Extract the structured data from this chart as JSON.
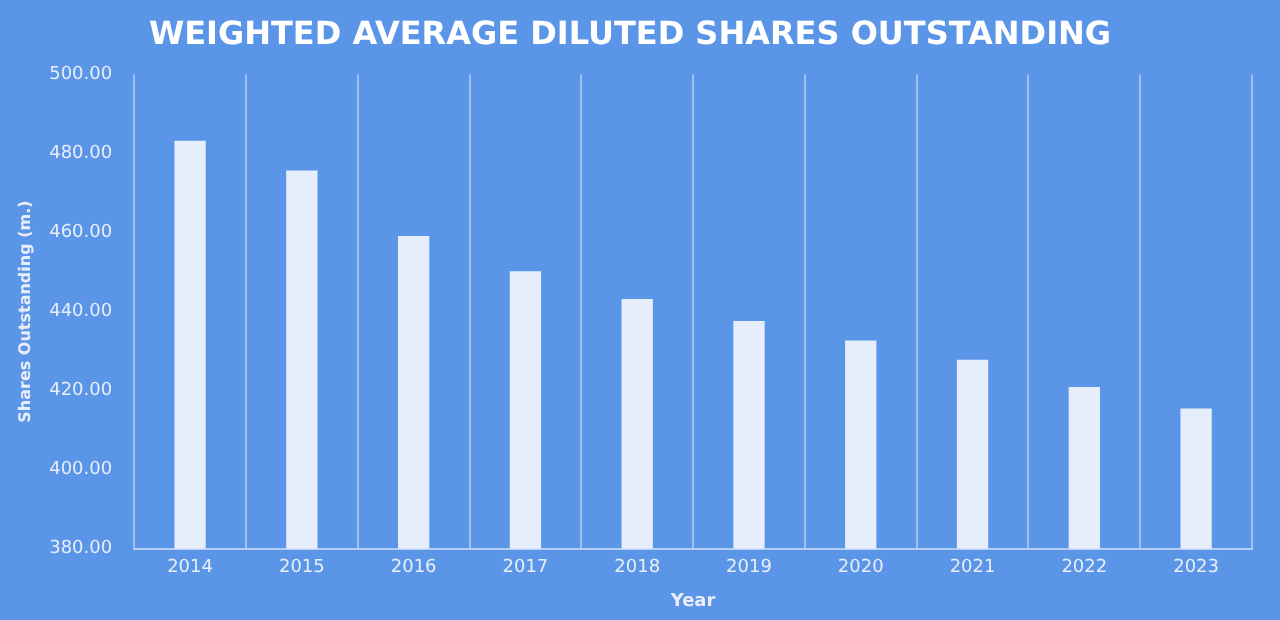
{
  "chart_data": {
    "type": "bar",
    "title": "WEIGHTED AVERAGE DILUTED SHARES OUTSTANDING",
    "xlabel": "Year",
    "ylabel": "Shares Outstanding (m.)",
    "categories": [
      "2014",
      "2015",
      "2016",
      "2017",
      "2018",
      "2019",
      "2020",
      "2021",
      "2022",
      "2023"
    ],
    "values": [
      483.2,
      475.7,
      459.1,
      450.2,
      443.2,
      437.6,
      432.7,
      427.8,
      420.9,
      415.5
    ],
    "color": "#e6eefc",
    "ylim": [
      380,
      500
    ],
    "yticks": [
      {
        "value": 380,
        "label": "380.00"
      },
      {
        "value": 400,
        "label": "400.00"
      },
      {
        "value": 420,
        "label": "420.00"
      },
      {
        "value": 440,
        "label": "440.00"
      },
      {
        "value": 460,
        "label": "460.00"
      },
      {
        "value": 480,
        "label": "480.00"
      },
      {
        "value": 500,
        "label": "500.00"
      }
    ],
    "grid": "x",
    "legend": false
  }
}
